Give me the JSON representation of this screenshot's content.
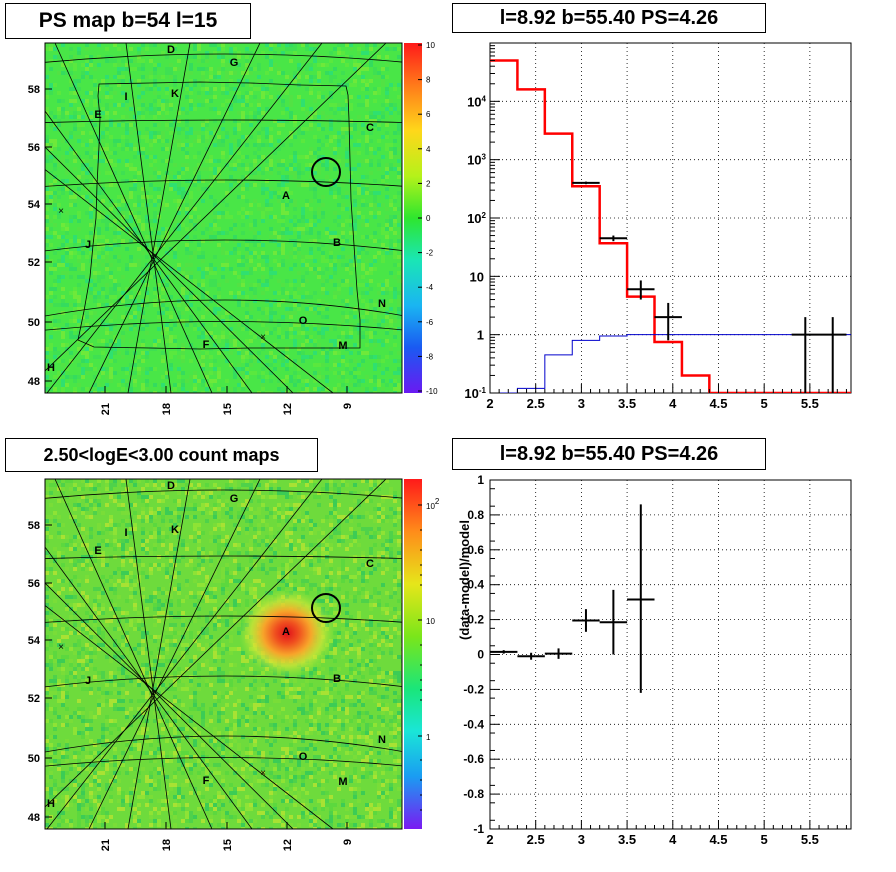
{
  "titles": {
    "ps_map": "PS map b=54 l=15",
    "spectrum": "l=8.92 b=55.40 PS=4.26",
    "count_map": "2.50<logE<3.00 count maps",
    "residual": "l=8.92 b=55.40 PS=4.26"
  },
  "colors": {
    "data": "#000000",
    "model": "#ff0000",
    "background": "#0000cc",
    "grid": "#000000",
    "map_base": "#49e647"
  },
  "chart_data": [
    {
      "type": "heatmap",
      "title": "PS map b=54 l=15",
      "y_ticks": [
        "48",
        "50",
        "52",
        "54",
        "56",
        "58"
      ],
      "x_ticks": [
        "21",
        "18",
        "15",
        "12",
        "9"
      ],
      "colorbar_ticks": [
        "10",
        "8",
        "6",
        "4",
        "2",
        "0",
        "-2",
        "-4",
        "-6",
        "-8",
        "-10"
      ],
      "colorbar_range": [
        -10,
        10
      ],
      "source_labels": [
        "A",
        "B",
        "C",
        "D",
        "E",
        "F",
        "G",
        "H",
        "I",
        "J",
        "K",
        "M",
        "N",
        "O"
      ],
      "marker": "circle at l=8.92 b=55.40"
    },
    {
      "type": "line",
      "subtype": "step",
      "title": "l=8.92 b=55.40 PS=4.26",
      "log_y": true,
      "xlim": [
        2,
        5.95
      ],
      "ylim": [
        0.1,
        100000
      ],
      "x_ticks": [
        "2",
        "2.5",
        "3",
        "3.5",
        "4",
        "4.5",
        "5",
        "5.5"
      ],
      "y_ticks": [
        "10^-1",
        "1",
        "10",
        "10^2",
        "10^3",
        "10^4"
      ],
      "grid": true,
      "series": [
        {
          "role": "model",
          "color": "#ff0000",
          "edges": [
            2.0,
            2.3,
            2.6,
            2.9,
            3.2,
            3.5,
            3.8,
            4.1,
            4.4,
            5.95
          ],
          "values": [
            50000,
            16000,
            2800,
            350,
            37,
            4.5,
            0.75,
            0.2,
            0.1
          ]
        },
        {
          "role": "background",
          "color": "#0000cc",
          "edges": [
            2.0,
            2.3,
            2.6,
            2.9,
            3.2,
            3.5,
            5.95
          ],
          "values": [
            0.08,
            0.12,
            0.45,
            0.8,
            0.95,
            1.0
          ]
        },
        {
          "role": "data",
          "color": "#000000",
          "points": [
            {
              "x": 3.05,
              "y": 400,
              "xerr": 0.15,
              "ylo": 380,
              "yhi": 420
            },
            {
              "x": 3.35,
              "y": 45,
              "xerr": 0.15,
              "ylo": 40,
              "yhi": 50
            },
            {
              "x": 3.65,
              "y": 6,
              "xerr": 0.15,
              "ylo": 4,
              "yhi": 8.5
            },
            {
              "x": 3.95,
              "y": 2,
              "xerr": 0.15,
              "ylo": 0.8,
              "yhi": 3.5
            },
            {
              "x": 5.45,
              "y": 1,
              "xerr": 0.15,
              "ylo": 0.1,
              "yhi": 2
            },
            {
              "x": 5.75,
              "y": 1,
              "xerr": 0.15,
              "ylo": 0.1,
              "yhi": 2
            }
          ]
        }
      ]
    },
    {
      "type": "heatmap",
      "title": "2.50<logE<3.00 count maps",
      "y_ticks": [
        "48",
        "50",
        "52",
        "54",
        "56",
        "58"
      ],
      "x_ticks": [
        "21",
        "18",
        "15",
        "12",
        "9"
      ],
      "colorbar_ticks": [
        "10^2",
        "10",
        "1"
      ],
      "colorbar_log": true,
      "source_labels": [
        "A",
        "B",
        "C",
        "D",
        "E",
        "F",
        "G",
        "H",
        "I",
        "J",
        "K",
        "M",
        "N",
        "O"
      ],
      "bright_source": "A",
      "marker": "circle at l=8.92 b=55.40"
    },
    {
      "type": "scatter",
      "title": "l=8.92 b=55.40 PS=4.26",
      "ylabel": "(data-model)/model",
      "xlim": [
        2,
        5.95
      ],
      "ylim": [
        -1,
        1
      ],
      "x_ticks": [
        "2",
        "2.5",
        "3",
        "3.5",
        "4",
        "4.5",
        "5",
        "5.5"
      ],
      "y_ticks": [
        "1",
        "0.8",
        "0.6",
        "0.4",
        "0.2",
        "0",
        "-0.2",
        "-0.4",
        "-0.6",
        "-0.8",
        "-1"
      ],
      "grid": true,
      "points": [
        {
          "x": 2.15,
          "y": 0.015,
          "xerr": 0.15,
          "ylo": 0.005,
          "yhi": 0.025
        },
        {
          "x": 2.45,
          "y": -0.01,
          "xerr": 0.15,
          "ylo": -0.03,
          "yhi": 0.01
        },
        {
          "x": 2.75,
          "y": 0.005,
          "xerr": 0.15,
          "ylo": -0.025,
          "yhi": 0.035
        },
        {
          "x": 3.05,
          "y": 0.195,
          "xerr": 0.15,
          "ylo": 0.13,
          "yhi": 0.26
        },
        {
          "x": 3.35,
          "y": 0.185,
          "xerr": 0.15,
          "ylo": 0.0,
          "yhi": 0.37
        },
        {
          "x": 3.65,
          "y": 0.315,
          "xerr": 0.15,
          "ylo": -0.22,
          "yhi": 0.86
        }
      ]
    }
  ]
}
